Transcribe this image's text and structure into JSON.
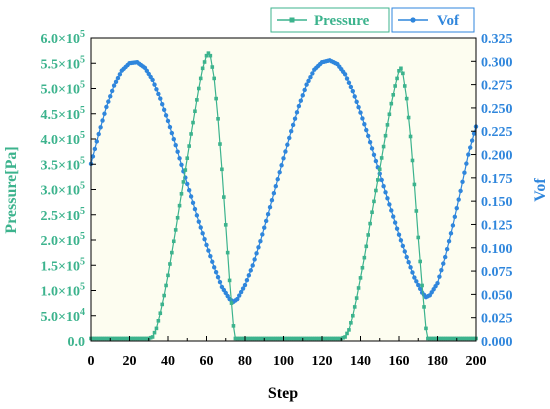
{
  "chart_data": {
    "type": "line",
    "xlabel": "Step",
    "ylabel_left": "Pressure[Pa]",
    "ylabel_right": "Vof",
    "xlim": [
      0,
      200
    ],
    "ylim_left": [
      0,
      600000
    ],
    "ylim_right": [
      0,
      0.325
    ],
    "x_ticks": [
      "0",
      "20",
      "40",
      "60",
      "80",
      "100",
      "120",
      "140",
      "160",
      "180",
      "200"
    ],
    "y_left_ticks": [
      {
        "mant": "0.0",
        "exp": ""
      },
      {
        "mant": "5.0×10",
        "exp": "4"
      },
      {
        "mant": "1.0×10",
        "exp": "5"
      },
      {
        "mant": "1.5×10",
        "exp": "5"
      },
      {
        "mant": "2.0×10",
        "exp": "5"
      },
      {
        "mant": "2.5×10",
        "exp": "5"
      },
      {
        "mant": "3.0×10",
        "exp": "5"
      },
      {
        "mant": "3.5×10",
        "exp": "5"
      },
      {
        "mant": "4.0×10",
        "exp": "5"
      },
      {
        "mant": "4.5×10",
        "exp": "5"
      },
      {
        "mant": "5.0×10",
        "exp": "5"
      },
      {
        "mant": "5.5×10",
        "exp": "5"
      },
      {
        "mant": "6.0×10",
        "exp": "5"
      }
    ],
    "y_right_ticks": [
      "0.000",
      "0.025",
      "0.050",
      "0.075",
      "0.100",
      "0.125",
      "0.150",
      "0.175",
      "0.200",
      "0.225",
      "0.250",
      "0.275",
      "0.300",
      "0.325"
    ],
    "legend_position": "top-right",
    "plot_background": "#fdfdf0",
    "series": [
      {
        "name": "Pressure",
        "axis": "left",
        "color": "#3cb38d",
        "marker": "square",
        "x": [
          0,
          30,
          32,
          34,
          36,
          38,
          40,
          42,
          44,
          46,
          48,
          50,
          52,
          54,
          56,
          58,
          60,
          61,
          62,
          64,
          66,
          68,
          70,
          72,
          74,
          75,
          80,
          100,
          120,
          130,
          132,
          134,
          136,
          138,
          140,
          142,
          144,
          146,
          148,
          150,
          152,
          154,
          156,
          158,
          160,
          161,
          162,
          164,
          166,
          168,
          170,
          172,
          174,
          175,
          200
        ],
        "values": [
          5000,
          5000,
          8000,
          25000,
          55000,
          90000,
          130000,
          175000,
          220000,
          268000,
          315000,
          362000,
          410000,
          455000,
          500000,
          540000,
          565000,
          570000,
          565000,
          520000,
          440000,
          340000,
          230000,
          120000,
          30000,
          5000,
          5000,
          5000,
          5000,
          5000,
          8000,
          22000,
          50000,
          85000,
          125000,
          165000,
          210000,
          255000,
          298000,
          340000,
          385000,
          428000,
          470000,
          505000,
          535000,
          540000,
          530000,
          480000,
          405000,
          310000,
          205000,
          110000,
          25000,
          5000,
          5000
        ]
      },
      {
        "name": "Vof",
        "axis": "right",
        "color": "#2f86dc",
        "marker": "circle",
        "x": [
          0,
          4,
          8,
          12,
          16,
          20,
          24,
          28,
          32,
          36,
          40,
          44,
          48,
          52,
          56,
          60,
          64,
          68,
          72,
          74,
          76,
          80,
          84,
          88,
          92,
          96,
          100,
          104,
          108,
          112,
          116,
          120,
          124,
          128,
          132,
          136,
          140,
          144,
          148,
          152,
          156,
          160,
          164,
          168,
          172,
          174,
          176,
          180,
          184,
          188,
          192,
          196,
          200
        ],
        "values": [
          0.19,
          0.222,
          0.251,
          0.274,
          0.29,
          0.298,
          0.299,
          0.293,
          0.28,
          0.26,
          0.236,
          0.21,
          0.182,
          0.155,
          0.128,
          0.103,
          0.079,
          0.058,
          0.045,
          0.042,
          0.045,
          0.06,
          0.081,
          0.107,
          0.136,
          0.166,
          0.196,
          0.225,
          0.252,
          0.275,
          0.291,
          0.299,
          0.301,
          0.297,
          0.286,
          0.268,
          0.245,
          0.22,
          0.193,
          0.166,
          0.14,
          0.114,
          0.09,
          0.068,
          0.052,
          0.047,
          0.049,
          0.062,
          0.09,
          0.124,
          0.161,
          0.2,
          0.23
        ]
      }
    ]
  }
}
